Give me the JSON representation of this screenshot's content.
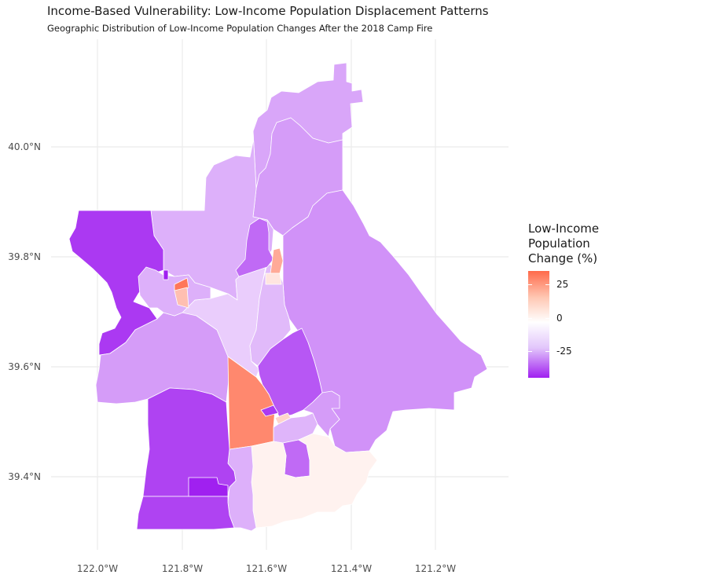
{
  "title": "Income-Based Vulnerability: Low-Income Population Displacement Patterns",
  "subtitle": "Geographic Distribution of Low-Income Population Changes After the 2018 Camp Fire",
  "axes": {
    "x_ticks": [
      "122.0°W",
      "121.8°W",
      "121.6°W",
      "121.4°W",
      "121.2°W"
    ],
    "y_ticks": [
      "40.0°N",
      "39.8°N",
      "39.6°N",
      "39.4°N"
    ],
    "grid": true
  },
  "legend": {
    "title": "Low-Income Population Change (%)",
    "title_lines": [
      "Low-Income",
      "Population",
      "Change (%)"
    ],
    "ticks": [
      {
        "label": "25",
        "value": 25
      },
      {
        "label": "0",
        "value": 0
      },
      {
        "label": "-25",
        "value": -25
      }
    ],
    "range": [
      -45,
      35
    ],
    "colors": {
      "high": "#ff6a4a",
      "mid": "#ffffff",
      "low": "#a020f0"
    }
  },
  "regions": [
    {
      "id": "far-north-ridge",
      "change": -18
    },
    {
      "id": "north-central",
      "change": -16
    },
    {
      "id": "north-east",
      "change": -20
    },
    {
      "id": "east-large",
      "change": -22
    },
    {
      "id": "north-west",
      "change": -40
    },
    {
      "id": "west-central",
      "change": -20
    },
    {
      "id": "southwest",
      "change": -38
    },
    {
      "id": "south-west-bottom",
      "change": -38
    },
    {
      "id": "south-west-inset",
      "change": -45
    },
    {
      "id": "oroville-center",
      "change": 28
    },
    {
      "id": "southeast",
      "change": 3
    },
    {
      "id": "central-east-purple",
      "change": -34
    },
    {
      "id": "central-north-inner",
      "change": -14
    },
    {
      "id": "central-strip",
      "change": -10
    },
    {
      "id": "paradise-strip",
      "change": -30
    },
    {
      "id": "paradise-orange",
      "change": 20
    },
    {
      "id": "paradise-small-light",
      "change": 6
    },
    {
      "id": "chico-dark",
      "change": -45
    },
    {
      "id": "chico-red",
      "change": 32
    },
    {
      "id": "chico-orange",
      "change": 15
    },
    {
      "id": "chico-tract",
      "change": -16
    },
    {
      "id": "oroville-small-purple",
      "change": -40
    },
    {
      "id": "oroville-small-orange",
      "change": 10
    },
    {
      "id": "south-central-light",
      "change": -15
    },
    {
      "id": "south-east-mid",
      "change": -20
    },
    {
      "id": "south-small-purple",
      "change": -30
    },
    {
      "id": "south-central-lower",
      "change": -16
    }
  ]
}
